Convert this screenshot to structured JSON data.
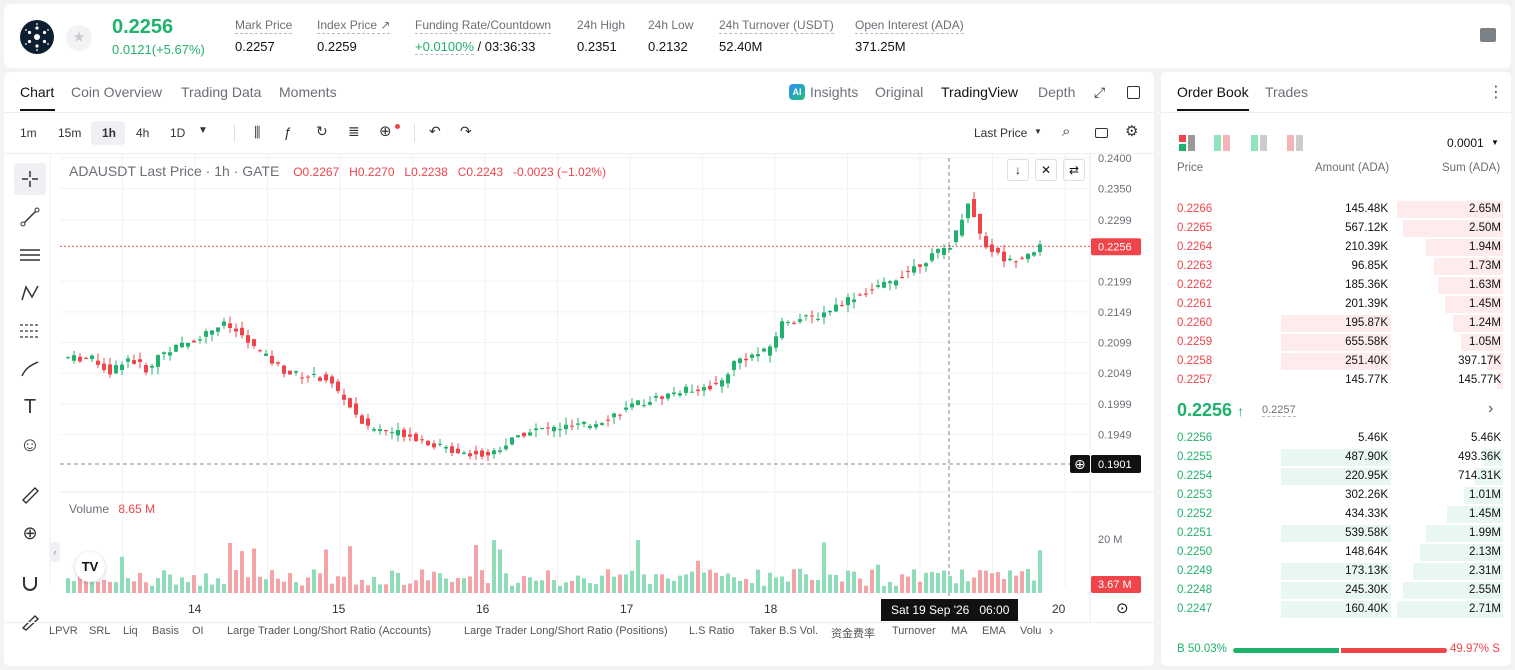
{
  "header": {
    "price": "0.2256",
    "change": "0.0121(+5.67%)",
    "stats": [
      {
        "label": "Mark Price",
        "value": "0.2257"
      },
      {
        "label": "Index Price ↗",
        "value": "0.2259"
      },
      {
        "label": "Funding Rate/Countdown",
        "value_green": "+0.0100%",
        "value": " / 03:36:33"
      },
      {
        "label": "24h High",
        "value": "0.2351"
      },
      {
        "label": "24h Low",
        "value": "0.2132"
      },
      {
        "label": "24h Turnover (USDT)",
        "value": "52.40M"
      },
      {
        "label": "Open Interest (ADA)",
        "value": "371.25M"
      }
    ]
  },
  "left": {
    "tabs": [
      "Chart",
      "Coin Overview",
      "Trading Data",
      "Moments"
    ],
    "view_tabs": [
      "Insights",
      "Original",
      "TradingView",
      "Depth"
    ],
    "intervals": [
      "1m",
      "15m",
      "1h",
      "4h",
      "1D"
    ],
    "price_type": "Last Price",
    "legend": {
      "symbol": "ADAUSDT Last Price · 1h · GATE",
      "o": "O0.2267",
      "h": "H0.2270",
      "l": "L0.2238",
      "c": "C0.2243",
      "chg": "-0.0023 (−1.02%)"
    },
    "volume_label": "Volume",
    "volume_value": "8.65 M",
    "price_ticks": [
      "0.2400",
      "0.2350",
      "0.2299",
      "0.2199",
      "0.2149",
      "0.2099",
      "0.2049",
      "0.1999",
      "0.1949"
    ],
    "last_price_tag": "0.2256",
    "cross_price_tag": "0.1901",
    "vol_ticks": [
      "20 M"
    ],
    "vol_tag": "3.67 M",
    "date_ticks": [
      "14",
      "15",
      "16",
      "17",
      "18",
      "20"
    ],
    "cursor_date": "Sat 19 Sep '26",
    "cursor_time": "06:00",
    "indicators": [
      "LPVR",
      "SRL",
      "Liq",
      "Basis",
      "OI",
      "Large Trader Long/Short Ratio (Accounts)",
      "Large Trader Long/Short Ratio (Positions)",
      "L.S Ratio",
      "Taker B.S Vol.",
      "资金费率",
      "Turnover",
      "MA",
      "EMA",
      "Volu"
    ]
  },
  "orderbook": {
    "tabs": [
      "Order Book",
      "Trades"
    ],
    "precision": "0.0001",
    "cols": [
      "Price",
      "Amount (ADA)",
      "Sum (ADA)"
    ],
    "asks": [
      {
        "p": "0.2266",
        "a": "145.48K",
        "s": "2.65M",
        "af": 0.0,
        "sf": 1.0
      },
      {
        "p": "0.2265",
        "a": "567.12K",
        "s": "2.50M",
        "af": 0.0,
        "sf": 0.94
      },
      {
        "p": "0.2264",
        "a": "210.39K",
        "s": "1.94M",
        "af": 0.0,
        "sf": 0.73
      },
      {
        "p": "0.2263",
        "a": "96.85K",
        "s": "1.73M",
        "af": 0.0,
        "sf": 0.65
      },
      {
        "p": "0.2262",
        "a": "185.36K",
        "s": "1.63M",
        "af": 0.0,
        "sf": 0.61
      },
      {
        "p": "0.2261",
        "a": "201.39K",
        "s": "1.45M",
        "af": 0.0,
        "sf": 0.55
      },
      {
        "p": "0.2260",
        "a": "195.87K",
        "s": "1.24M",
        "af": 0.35,
        "sf": 0.47
      },
      {
        "p": "0.2259",
        "a": "655.58K",
        "s": "1.05M",
        "af": 0.35,
        "sf": 0.4
      },
      {
        "p": "0.2258",
        "a": "251.40K",
        "s": "397.17K",
        "af": 0.35,
        "sf": 0.15
      },
      {
        "p": "0.2257",
        "a": "145.77K",
        "s": "145.77K",
        "af": 0.0,
        "sf": 0.06
      }
    ],
    "mid_price": "0.2256",
    "mid_arrow": "↑",
    "mid_mark": "0.2257",
    "bids": [
      {
        "p": "0.2256",
        "a": "5.46K",
        "s": "5.46K",
        "af": 0.0,
        "sf": 0.0
      },
      {
        "p": "0.2255",
        "a": "487.90K",
        "s": "493.36K",
        "af": 0.35,
        "sf": 0.18
      },
      {
        "p": "0.2254",
        "a": "220.95K",
        "s": "714.31K",
        "af": 0.35,
        "sf": 0.26
      },
      {
        "p": "0.2253",
        "a": "302.26K",
        "s": "1.01M",
        "af": 0.0,
        "sf": 0.37
      },
      {
        "p": "0.2252",
        "a": "434.33K",
        "s": "1.45M",
        "af": 0.0,
        "sf": 0.53
      },
      {
        "p": "0.2251",
        "a": "539.58K",
        "s": "1.99M",
        "af": 0.35,
        "sf": 0.73
      },
      {
        "p": "0.2250",
        "a": "148.64K",
        "s": "2.13M",
        "af": 0.0,
        "sf": 0.78
      },
      {
        "p": "0.2249",
        "a": "173.13K",
        "s": "2.31M",
        "af": 0.35,
        "sf": 0.85
      },
      {
        "p": "0.2248",
        "a": "245.30K",
        "s": "2.55M",
        "af": 0.35,
        "sf": 0.94
      },
      {
        "p": "0.2247",
        "a": "160.40K",
        "s": "2.71M",
        "af": 0.35,
        "sf": 1.0
      }
    ],
    "buy_label": "B",
    "buy_pct": "50.03%",
    "sell_pct": "49.97%",
    "sell_label": "S",
    "buy_ratio": 0.5003
  },
  "colors": {
    "green": "#20b26c",
    "red": "#ef454a"
  }
}
